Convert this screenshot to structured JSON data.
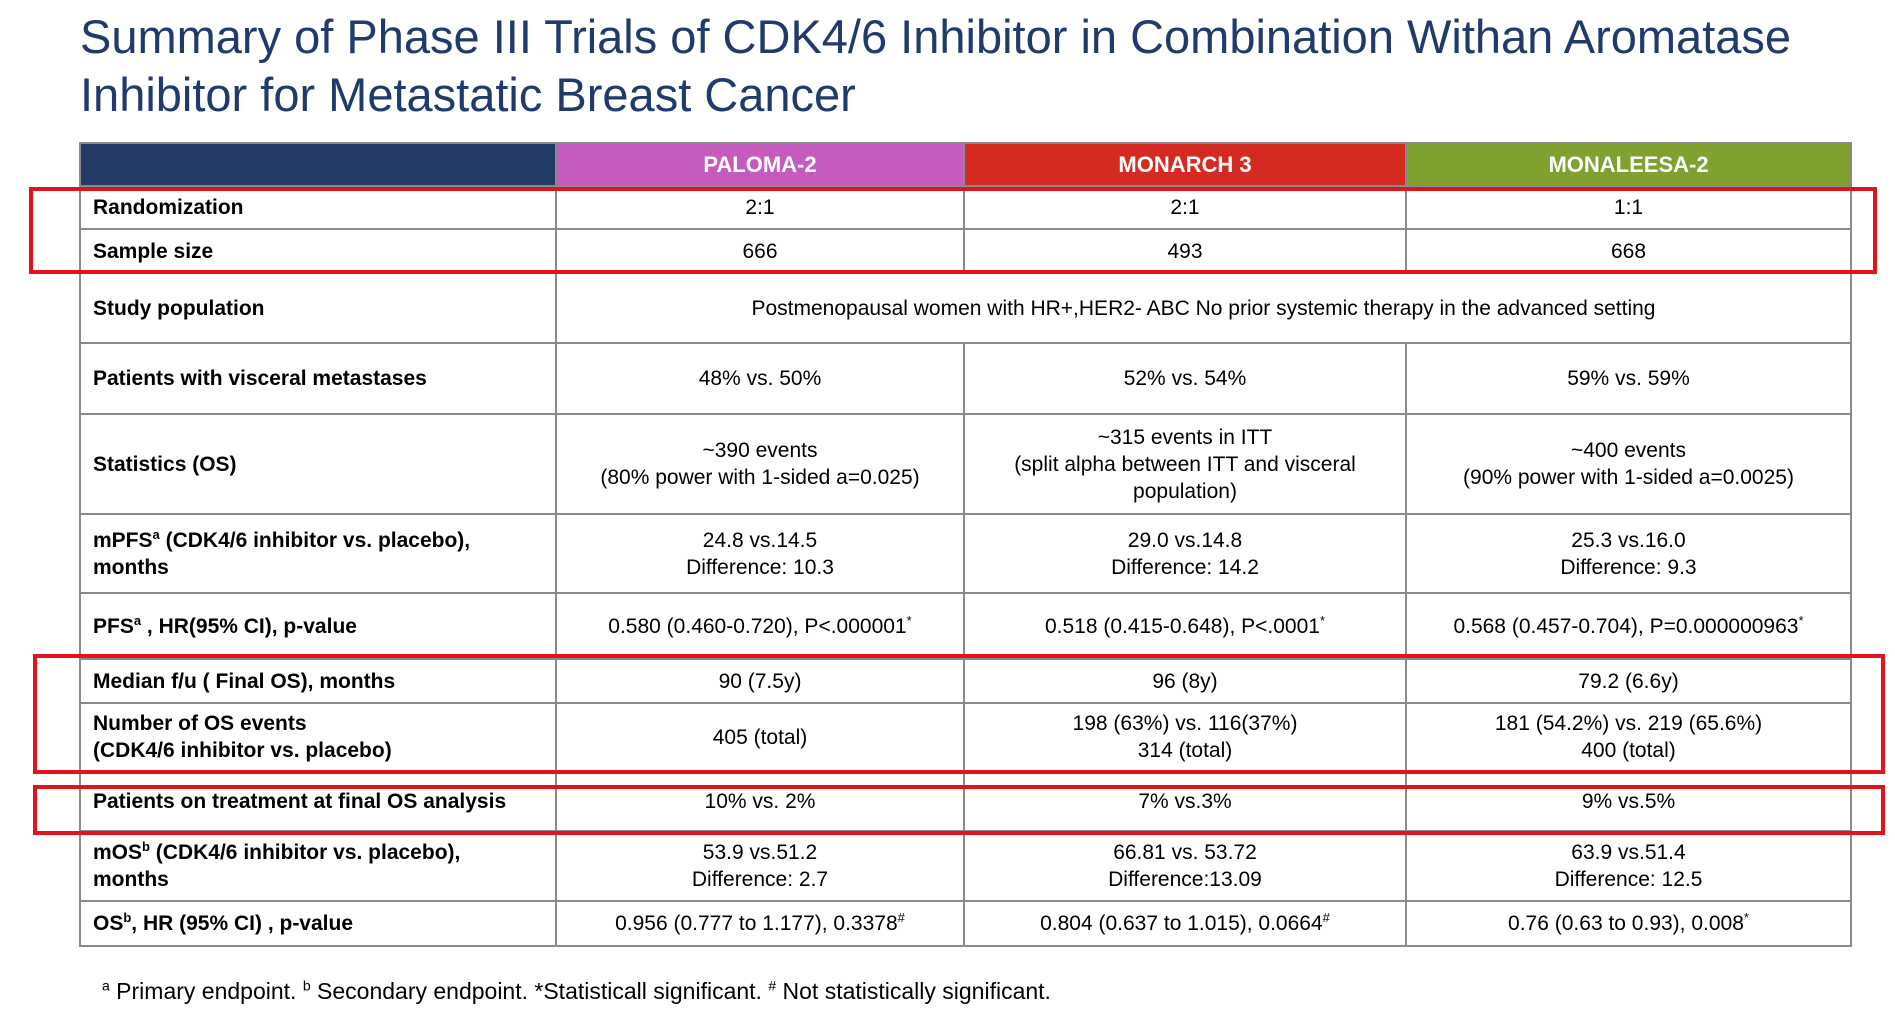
{
  "title": "Summary of Phase III Trials of CDK4/6 Inhibitor in Combination Withan Aromatase Inhibitor for Metastatic Breast Cancer",
  "columns": [
    {
      "label": "PALOMA-2",
      "color": "#c55bbf"
    },
    {
      "label": "MONARCH 3",
      "color": "#d42a22"
    },
    {
      "label": "MONALEESA-2",
      "color": "#7fa12f"
    }
  ],
  "corner_color": "#243a66",
  "highlight_color": "#e0151b",
  "rows": {
    "randomization": {
      "label": "Randomization",
      "values": [
        "2:1",
        "2:1",
        "1:1"
      ]
    },
    "sample_size": {
      "label": "Sample size",
      "values": [
        "666",
        "493",
        "668"
      ]
    },
    "study_population": {
      "label": "Study population",
      "value": "Postmenopausal women with HR+,HER2- ABC No prior systemic therapy in the advanced setting"
    },
    "visceral": {
      "label": "Patients with visceral metastases",
      "values": [
        "48% vs. 50%",
        "52% vs. 54%",
        "59% vs. 59%"
      ]
    },
    "statistics": {
      "label": "Statistics (OS)",
      "values": [
        "~390 events\n(80% power with 1-sided a=0.025)",
        "~315 events in ITT\n(split alpha between ITT and visceral\npopulation)",
        "~400 events\n(90% power with 1-sided a=0.0025)"
      ]
    },
    "mpfs": {
      "label_pre": "mPFS",
      "label_sup": "a",
      "label_post": " (CDK4/6 inhibitor vs. placebo),\nmonths",
      "values": [
        "24.8 vs.14.5\nDifference: 10.3",
        "29.0 vs.14.8\nDifference: 14.2",
        "25.3 vs.16.0\nDifference: 9.3"
      ]
    },
    "pfs_hr": {
      "label_pre": "PFS",
      "label_sup": "a",
      "label_post": " , HR(95% CI), p-value",
      "values": [
        "0.580 (0.460-0.720), P<.000001",
        "0.518 (0.415-0.648), P<.0001",
        "0.568 (0.457-0.704), P=0.000000963"
      ],
      "marks": [
        "*",
        "*",
        "*"
      ]
    },
    "median_fu": {
      "label": "Median f/u ( Final OS), months",
      "values": [
        "90 (7.5y)",
        "96 (8y)",
        "79.2 (6.6y)"
      ]
    },
    "os_events": {
      "label": "Number of OS events\n(CDK4/6 inhibitor vs. placebo)",
      "values": [
        "405 (total)",
        "198 (63%) vs. 116(37%)\n314 (total)",
        "181 (54.2%) vs. 219 (65.6%)\n400 (total)"
      ]
    },
    "on_treatment": {
      "label": "Patients on treatment at final OS analysis",
      "values": [
        "10% vs. 2%",
        "7% vs.3%",
        "9% vs.5%"
      ]
    },
    "mos": {
      "label_pre": "mOS",
      "label_sup": "b",
      "label_post": " (CDK4/6 inhibitor vs. placebo),\nmonths",
      "values": [
        "53.9 vs.51.2\nDifference: 2.7",
        "66.81 vs. 53.72\nDifference:13.09",
        "63.9 vs.51.4\nDifference: 12.5"
      ]
    },
    "os_hr": {
      "label_pre": "OS",
      "label_sup": "b",
      "label_post": ", HR (95% CI) , p-value",
      "values": [
        "0.956 (0.777 to 1.177), 0.3378",
        "0.804 (0.637 to 1.015), 0.0664",
        "0.76 (0.63 to 0.93), 0.008"
      ],
      "marks": [
        "#",
        "#",
        "*"
      ]
    }
  },
  "footnote": {
    "a_mark": "a",
    "a_text": " Primary endpoint. ",
    "b_mark": "b",
    "b_text": " Secondary endpoint. *Statisticall significant. ",
    "hash_mark": "#",
    "hash_text": " Not statistically significant."
  }
}
